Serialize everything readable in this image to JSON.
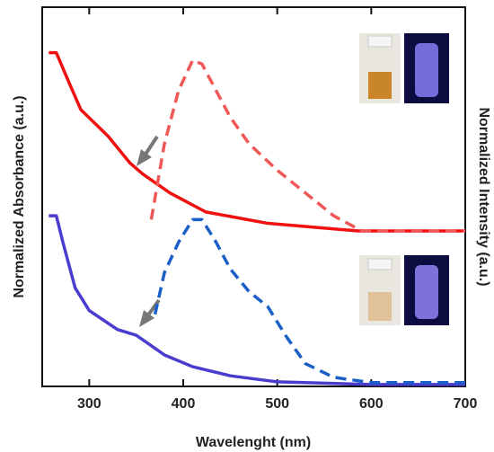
{
  "chart_data": {
    "type": "line",
    "x_label": "Wavelenght (nm)",
    "y_label": "Normalized Absorbance (a.u.)",
    "y2_label": "Normalized Intensity (a.u.)",
    "xlim": [
      250,
      700
    ],
    "xticks": [
      300,
      400,
      500,
      600,
      700
    ],
    "ylim": [
      0,
      1
    ],
    "series": [
      {
        "color": "#f01010",
        "dash": false,
        "x": [
          257,
          265,
          277,
          291,
          320,
          343,
          357,
          386,
          424,
          490,
          586,
          700
        ],
        "values": [
          0.88,
          0.88,
          0.81,
          0.73,
          0.66,
          0.59,
          0.56,
          0.51,
          0.46,
          0.43,
          0.41,
          0.41
        ]
      },
      {
        "color": "#f05858",
        "dash": true,
        "x": [
          366,
          380,
          395,
          410,
          420,
          435,
          450,
          470,
          500,
          530,
          560,
          590,
          620,
          700
        ],
        "values": [
          0.44,
          0.64,
          0.78,
          0.86,
          0.85,
          0.78,
          0.71,
          0.64,
          0.57,
          0.51,
          0.45,
          0.41,
          0.41,
          0.41
        ]
      },
      {
        "color": "#4a3ccf",
        "dash": false,
        "x": [
          257,
          265,
          272,
          285,
          300,
          330,
          350,
          380,
          410,
          450,
          500,
          600,
          700
        ],
        "values": [
          0.45,
          0.45,
          0.38,
          0.26,
          0.2,
          0.15,
          0.135,
          0.083,
          0.052,
          0.028,
          0.012,
          0.005,
          0.005
        ]
      },
      {
        "color": "#1a5fc8",
        "dash": true,
        "x": [
          370,
          380,
          395,
          410,
          420,
          435,
          450,
          470,
          490,
          510,
          530,
          560,
          600,
          700
        ],
        "values": [
          0.19,
          0.3,
          0.38,
          0.44,
          0.44,
          0.38,
          0.31,
          0.25,
          0.21,
          0.13,
          0.06,
          0.024,
          0.01,
          0.01
        ]
      }
    ]
  }
}
